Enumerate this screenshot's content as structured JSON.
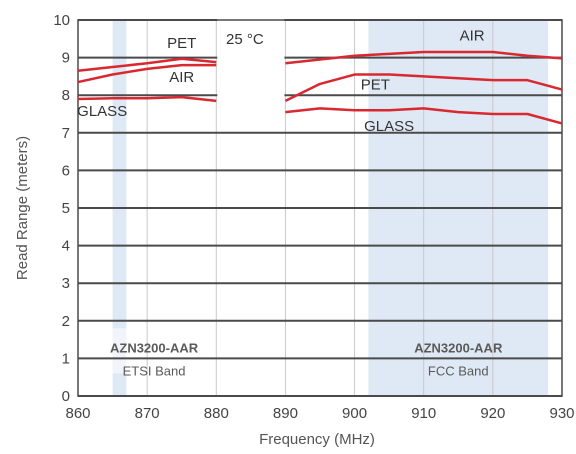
{
  "chart_data": {
    "type": "line",
    "xlabel": "Frequency (MHz)",
    "ylabel": "Read Range (meters)",
    "xlim": [
      860,
      930
    ],
    "ylim": [
      0,
      10
    ],
    "x_ticks": [
      860,
      870,
      880,
      890,
      900,
      910,
      920,
      930
    ],
    "y_ticks": [
      0,
      1,
      2,
      3,
      4,
      5,
      6,
      7,
      8,
      9,
      10
    ],
    "grid": true,
    "annotation": "25 °C",
    "bands": [
      {
        "label": "AZN3200-AAR",
        "sublabel": "ETSI Band",
        "x_range": [
          865,
          867
        ],
        "box_x_range": [
          862,
          880
        ]
      },
      {
        "label": "AZN3200-AAR",
        "sublabel": "FCC Band",
        "x_range": [
          902,
          928
        ],
        "box_x_range": [
          902,
          928
        ]
      }
    ],
    "series": [
      {
        "name": "AIR",
        "segments": [
          {
            "x": [
              860,
              865,
              870,
              875,
              880
            ],
            "y": [
              8.35,
              8.55,
              8.7,
              8.8,
              8.8
            ]
          },
          {
            "x": [
              890,
              895,
              900,
              905,
              910,
              915,
              920,
              925,
              930
            ],
            "y": [
              8.85,
              8.95,
              9.05,
              9.1,
              9.15,
              9.15,
              9.15,
              9.05,
              8.98
            ]
          }
        ]
      },
      {
        "name": "PET",
        "segments": [
          {
            "x": [
              860,
              865,
              870,
              875,
              880
            ],
            "y": [
              8.65,
              8.75,
              8.85,
              8.97,
              8.88
            ]
          },
          {
            "x": [
              890,
              895,
              900,
              905,
              910,
              915,
              920,
              925,
              930
            ],
            "y": [
              7.85,
              8.3,
              8.55,
              8.55,
              8.5,
              8.45,
              8.4,
              8.4,
              8.15
            ]
          }
        ]
      },
      {
        "name": "GLASS",
        "segments": [
          {
            "x": [
              860,
              865,
              870,
              875,
              880
            ],
            "y": [
              7.9,
              7.92,
              7.92,
              7.95,
              7.85
            ]
          },
          {
            "x": [
              890,
              895,
              900,
              905,
              910,
              915,
              920,
              925,
              930
            ],
            "y": [
              7.55,
              7.65,
              7.6,
              7.6,
              7.65,
              7.55,
              7.5,
              7.5,
              7.25
            ]
          }
        ]
      }
    ],
    "colors": {
      "line": "#d9282f",
      "band": "#dfe9f5",
      "grid_major": "#4a4a4a",
      "grid_minor": "#c8c8c8"
    }
  }
}
